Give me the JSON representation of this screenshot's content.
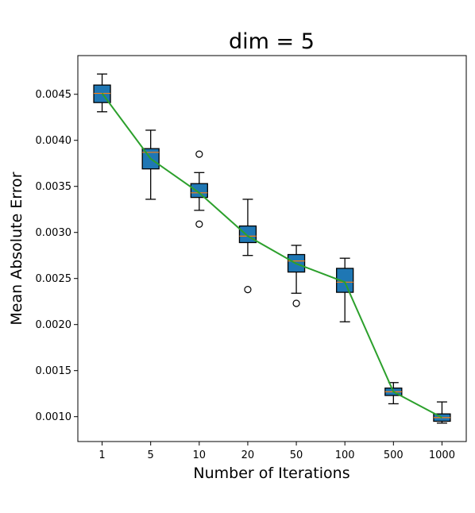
{
  "chart_data": {
    "type": "box",
    "title": "dim = 5",
    "xlabel": "Number of Iterations",
    "ylabel": "Mean Absolute Error",
    "ylim": [
      0.00073,
      0.00492
    ],
    "yticks": [
      "0.0010",
      "0.0015",
      "0.0020",
      "0.0025",
      "0.0030",
      "0.0035",
      "0.0040",
      "0.0045"
    ],
    "categories": [
      "1",
      "5",
      "10",
      "20",
      "50",
      "100",
      "500",
      "1000"
    ],
    "boxes": [
      {
        "whisker_low": 0.00431,
        "q1": 0.00441,
        "median": 0.00451,
        "q3": 0.0046,
        "whisker_high": 0.00472,
        "outliers": []
      },
      {
        "whisker_low": 0.00336,
        "q1": 0.00369,
        "median": 0.00387,
        "q3": 0.00391,
        "whisker_high": 0.00411,
        "outliers": []
      },
      {
        "whisker_low": 0.00324,
        "q1": 0.00338,
        "median": 0.00343,
        "q3": 0.00353,
        "whisker_high": 0.00365,
        "outliers": [
          0.00385,
          0.00309
        ]
      },
      {
        "whisker_low": 0.00275,
        "q1": 0.00289,
        "median": 0.00296,
        "q3": 0.00307,
        "whisker_high": 0.00336,
        "outliers": [
          0.00238
        ]
      },
      {
        "whisker_low": 0.00234,
        "q1": 0.00257,
        "median": 0.00269,
        "q3": 0.00276,
        "whisker_high": 0.00286,
        "outliers": [
          0.00223
        ]
      },
      {
        "whisker_low": 0.00203,
        "q1": 0.00235,
        "median": 0.00246,
        "q3": 0.00261,
        "whisker_high": 0.00272,
        "outliers": []
      },
      {
        "whisker_low": 0.00114,
        "q1": 0.00123,
        "median": 0.00127,
        "q3": 0.00131,
        "whisker_high": 0.00137,
        "outliers": []
      },
      {
        "whisker_low": 0.00093,
        "q1": 0.00095,
        "median": 0.00099,
        "q3": 0.00103,
        "whisker_high": 0.00116,
        "outliers": []
      }
    ],
    "trend_line": [
      0.00451,
      0.0038,
      0.00343,
      0.00296,
      0.00266,
      0.00246,
      0.00127,
      0.00099
    ],
    "colors": {
      "box_fill": "#1f77b4",
      "median": "#ff7f0e",
      "trend_line": "#2ca02c",
      "edge": "#000000"
    },
    "grid": false,
    "legend": "none"
  }
}
